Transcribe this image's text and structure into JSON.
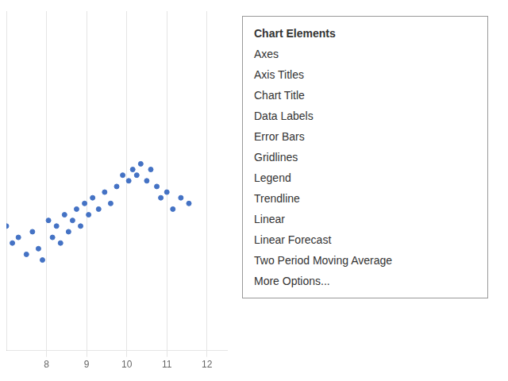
{
  "chart_data": {
    "type": "scatter",
    "x": [
      7.0,
      7.15,
      7.3,
      7.5,
      7.65,
      7.8,
      7.9,
      8.05,
      8.15,
      8.25,
      8.35,
      8.45,
      8.55,
      8.65,
      8.75,
      8.85,
      8.95,
      9.05,
      9.15,
      9.3,
      9.45,
      9.6,
      9.75,
      9.9,
      10.05,
      10.15,
      10.25,
      10.35,
      10.5,
      10.6,
      10.75,
      10.85,
      11.0,
      11.15,
      11.35,
      11.55
    ],
    "values": [
      0.52,
      0.49,
      0.5,
      0.47,
      0.51,
      0.48,
      0.46,
      0.53,
      0.5,
      0.52,
      0.49,
      0.54,
      0.51,
      0.53,
      0.55,
      0.52,
      0.56,
      0.54,
      0.57,
      0.55,
      0.58,
      0.56,
      0.59,
      0.61,
      0.6,
      0.62,
      0.61,
      0.63,
      0.6,
      0.62,
      0.59,
      0.57,
      0.58,
      0.55,
      0.57,
      0.56
    ],
    "color": "#4472C4",
    "xlim": [
      7,
      12.5
    ],
    "xticks": [
      8,
      9,
      10,
      11,
      12
    ],
    "ylim": [
      0.3,
      0.9
    ],
    "yticks": [],
    "grid": true,
    "tick_labels": "x",
    "annotations": [
      "Chart Elements",
      "Axes",
      "Axis Titles",
      "Chart Title",
      "Data Labels",
      "Error Bars",
      "Gridlines",
      "Legend",
      "Trendline",
      "Linear",
      "Linear Forecast",
      "Two Period Moving Average",
      "More Options..."
    ]
  }
}
